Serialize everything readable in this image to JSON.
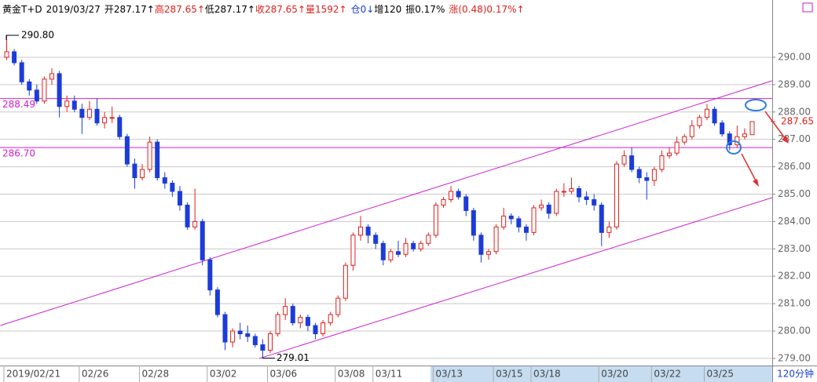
{
  "chart_data": {
    "type": "candlestick",
    "header": [
      {
        "text": "黄金T+D",
        "color": "#000000"
      },
      {
        "text": "2019/03/27",
        "color": "#000000"
      },
      {
        "text": "开287.17↑",
        "color": "#000000"
      },
      {
        "text": "高287.65↑",
        "color": "#e0201c"
      },
      {
        "text": "低287.17↑",
        "color": "#000000"
      },
      {
        "text": "收287.65↑",
        "color": "#e0201c"
      },
      {
        "text": "量1592↑",
        "color": "#e0201c"
      },
      {
        "text": "仓0↓",
        "color": "#1c3cd8"
      },
      {
        "text": "增120",
        "color": "#000000"
      },
      {
        "text": "振0.17%",
        "color": "#000000"
      },
      {
        "text": "涨(0.48)0.17%↑",
        "color": "#e0201c"
      }
    ],
    "period": "120分钟",
    "up_color": "#e0201c",
    "down_color": "#1c3cd8",
    "line_color": "#d020d0",
    "ylim": [
      278.74,
      292.09
    ],
    "yticks": [
      {
        "value": 279,
        "label": "279.00"
      },
      {
        "value": 280,
        "label": "280.00"
      },
      {
        "value": 281,
        "label": "281.00"
      },
      {
        "value": 282,
        "label": "282.00"
      },
      {
        "value": 283,
        "label": "283.00"
      },
      {
        "value": 284,
        "label": "284.00"
      },
      {
        "value": 285,
        "label": "285.00"
      },
      {
        "value": 286,
        "label": "286.00"
      },
      {
        "value": 287,
        "label": "287.00"
      },
      {
        "value": 288,
        "label": "288.00"
      },
      {
        "value": 289,
        "label": "289.00"
      },
      {
        "value": 290,
        "label": "290.00"
      }
    ],
    "grid": true,
    "categories": [
      "2019/02/21",
      null,
      null,
      null,
      null,
      null,
      null,
      null,
      null,
      null,
      "02/26",
      null,
      null,
      null,
      null,
      null,
      null,
      null,
      "02/28",
      null,
      null,
      null,
      null,
      null,
      null,
      null,
      null,
      "03/02",
      null,
      null,
      null,
      null,
      null,
      null,
      null,
      "03/06",
      null,
      null,
      null,
      null,
      null,
      null,
      null,
      null,
      "03/08",
      null,
      null,
      null,
      null,
      "03/11",
      null,
      null,
      null,
      null,
      null,
      null,
      null,
      "03/13",
      null,
      null,
      null,
      null,
      null,
      null,
      null,
      "03/15",
      null,
      null,
      null,
      null,
      "03/18",
      null,
      null,
      null,
      null,
      null,
      null,
      null,
      null,
      "03/20",
      null,
      null,
      null,
      null,
      null,
      null,
      "03/22",
      null,
      null,
      null,
      null,
      null,
      null,
      "03/25",
      null,
      null,
      null,
      null,
      null,
      null
    ],
    "candles": [
      [
        290.0,
        290.8,
        289.9,
        290.2
      ],
      [
        290.2,
        290.3,
        289.7,
        289.8
      ],
      [
        289.8,
        289.9,
        289.0,
        289.1
      ],
      [
        289.1,
        289.2,
        288.6,
        288.8
      ],
      [
        288.8,
        289.0,
        288.3,
        288.4
      ],
      [
        288.4,
        289.3,
        288.3,
        289.2
      ],
      [
        289.2,
        289.6,
        289.0,
        289.4
      ],
      [
        289.4,
        289.5,
        287.8,
        288.2
      ],
      [
        288.2,
        288.6,
        288.0,
        288.4
      ],
      [
        288.4,
        288.6,
        288.0,
        288.1
      ],
      [
        288.1,
        288.3,
        287.2,
        287.8
      ],
      [
        287.8,
        288.4,
        287.7,
        288.1
      ],
      [
        288.1,
        288.5,
        287.5,
        287.6
      ],
      [
        287.6,
        288.0,
        287.4,
        287.8
      ],
      [
        287.8,
        288.2,
        287.6,
        287.8
      ],
      [
        287.8,
        287.9,
        287.0,
        287.1
      ],
      [
        287.1,
        287.2,
        286.0,
        286.1
      ],
      [
        286.1,
        286.3,
        285.2,
        285.6
      ],
      [
        285.6,
        286.1,
        285.5,
        285.9
      ],
      [
        285.9,
        287.1,
        285.8,
        286.9
      ],
      [
        286.9,
        287.0,
        285.5,
        285.6
      ],
      [
        285.6,
        285.8,
        285.2,
        285.4
      ],
      [
        285.4,
        285.5,
        284.9,
        285.1
      ],
      [
        285.1,
        285.3,
        284.4,
        284.6
      ],
      [
        284.6,
        284.7,
        283.7,
        283.8
      ],
      [
        283.8,
        285.2,
        283.7,
        284.0
      ],
      [
        284.0,
        284.1,
        282.4,
        282.6
      ],
      [
        282.6,
        282.7,
        281.3,
        281.5
      ],
      [
        281.5,
        281.6,
        280.5,
        280.6
      ],
      [
        280.6,
        280.7,
        279.3,
        279.6
      ],
      [
        279.6,
        280.1,
        279.4,
        280.0
      ],
      [
        280.0,
        280.3,
        279.7,
        279.9
      ],
      [
        279.9,
        280.2,
        279.6,
        279.8
      ],
      [
        279.8,
        279.9,
        279.4,
        279.5
      ],
      [
        279.5,
        279.7,
        279.01,
        279.3
      ],
      [
        279.3,
        280.0,
        279.2,
        279.9
      ],
      [
        279.9,
        280.7,
        279.8,
        280.6
      ],
      [
        280.6,
        281.2,
        280.4,
        280.9
      ],
      [
        280.9,
        281.0,
        280.2,
        280.3
      ],
      [
        280.3,
        280.6,
        280.1,
        280.5
      ],
      [
        280.5,
        280.6,
        280.0,
        280.2
      ],
      [
        280.2,
        280.3,
        279.7,
        279.9
      ],
      [
        279.9,
        280.4,
        279.8,
        280.3
      ],
      [
        280.3,
        280.7,
        280.2,
        280.6
      ],
      [
        280.6,
        281.3,
        280.5,
        281.2
      ],
      [
        281.2,
        282.5,
        281.1,
        282.4
      ],
      [
        282.4,
        283.6,
        282.2,
        283.5
      ],
      [
        283.5,
        284.2,
        283.3,
        283.8
      ],
      [
        283.8,
        283.9,
        283.2,
        283.5
      ],
      [
        283.5,
        283.6,
        283.0,
        283.2
      ],
      [
        283.2,
        283.3,
        282.4,
        282.6
      ],
      [
        282.6,
        283.0,
        282.5,
        282.9
      ],
      [
        282.9,
        283.3,
        282.7,
        282.8
      ],
      [
        282.8,
        283.4,
        282.7,
        283.2
      ],
      [
        283.2,
        283.3,
        282.9,
        283.0
      ],
      [
        283.0,
        283.3,
        282.9,
        283.2
      ],
      [
        283.2,
        283.6,
        283.1,
        283.5
      ],
      [
        283.5,
        284.7,
        283.4,
        284.6
      ],
      [
        284.6,
        284.9,
        284.5,
        284.8
      ],
      [
        284.8,
        285.3,
        284.7,
        285.1
      ],
      [
        285.1,
        285.2,
        284.8,
        284.9
      ],
      [
        284.9,
        285.0,
        284.2,
        284.4
      ],
      [
        284.4,
        284.5,
        283.3,
        283.5
      ],
      [
        283.5,
        283.6,
        282.5,
        282.8
      ],
      [
        282.8,
        283.0,
        282.6,
        282.9
      ],
      [
        282.9,
        283.9,
        282.8,
        283.8
      ],
      [
        283.8,
        284.5,
        283.7,
        284.2
      ],
      [
        284.2,
        284.3,
        283.9,
        284.1
      ],
      [
        284.1,
        284.2,
        283.6,
        283.8
      ],
      [
        283.8,
        283.9,
        283.3,
        283.6
      ],
      [
        283.6,
        284.6,
        283.5,
        284.5
      ],
      [
        284.5,
        284.8,
        284.4,
        284.6
      ],
      [
        284.6,
        284.7,
        284.1,
        284.3
      ],
      [
        284.3,
        285.2,
        284.2,
        285.1
      ],
      [
        285.1,
        285.4,
        284.9,
        285.1
      ],
      [
        285.1,
        285.6,
        285.0,
        285.2
      ],
      [
        285.2,
        285.3,
        284.7,
        284.9
      ],
      [
        284.9,
        285.1,
        284.6,
        284.8
      ],
      [
        284.8,
        285.0,
        284.4,
        284.6
      ],
      [
        284.6,
        284.7,
        283.1,
        283.6
      ],
      [
        283.6,
        284.0,
        283.4,
        283.8
      ],
      [
        283.8,
        286.2,
        283.7,
        286.1
      ],
      [
        286.1,
        286.6,
        286.0,
        286.4
      ],
      [
        286.4,
        286.7,
        285.8,
        285.9
      ],
      [
        285.9,
        286.0,
        285.4,
        285.6
      ],
      [
        285.6,
        285.8,
        284.8,
        285.5
      ],
      [
        285.5,
        286.0,
        285.3,
        285.9
      ],
      [
        285.9,
        286.6,
        285.8,
        286.4
      ],
      [
        286.4,
        286.7,
        286.3,
        286.5
      ],
      [
        286.5,
        287.1,
        286.4,
        286.9
      ],
      [
        286.9,
        287.2,
        286.8,
        287.1
      ],
      [
        287.1,
        287.7,
        287.0,
        287.5
      ],
      [
        287.5,
        287.9,
        287.4,
        287.8
      ],
      [
        287.8,
        288.3,
        287.7,
        288.1
      ],
      [
        288.1,
        288.2,
        287.5,
        287.6
      ],
      [
        287.6,
        287.7,
        287.1,
        287.2
      ],
      [
        287.2,
        287.3,
        286.6,
        286.8
      ],
      [
        286.8,
        287.5,
        286.7,
        287.1
      ],
      [
        287.1,
        287.4,
        287.0,
        287.2
      ],
      [
        287.17,
        287.65,
        287.17,
        287.65
      ]
    ],
    "levels": [
      288.49,
      {
        "value": 286.7,
        "label": "286.70"
      }
    ],
    "trendlines": [
      {
        "x": [
          -0.8,
          101.7
        ],
        "values": [
          280.2,
          289.14
        ]
      },
      {
        "x": [
          33.6,
          101.7
        ],
        "values": [
          279.0,
          284.87
        ]
      }
    ],
    "annotations": [
      {
        "index": 0,
        "value": {
          "value": 290.8,
          "label": "290.80"
        }
      },
      {
        "index": 34,
        "value": 279.01
      }
    ]
  }
}
